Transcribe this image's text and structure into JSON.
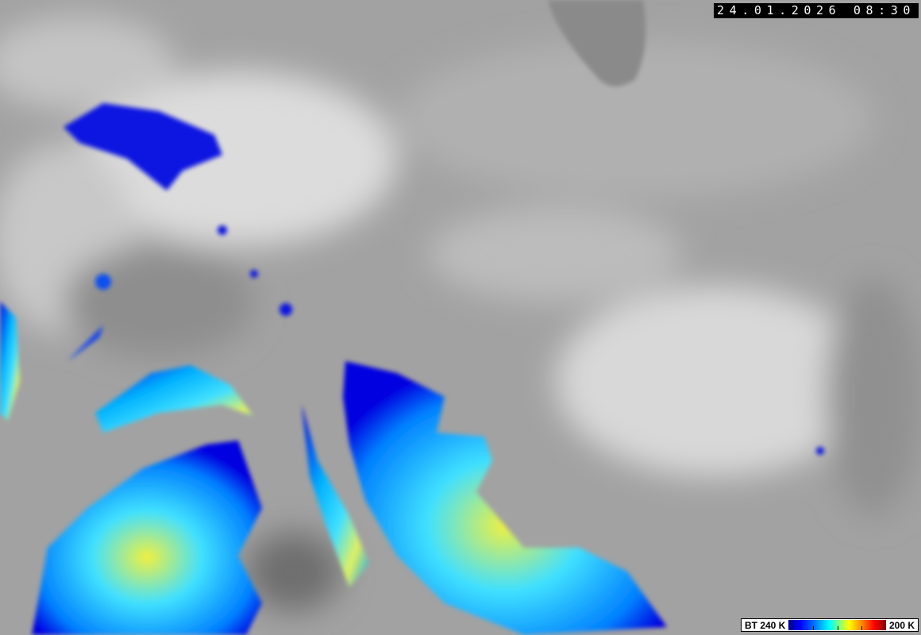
{
  "timestamp": "24.01.2026 08:30",
  "legend": {
    "left_label": "BT 240 K",
    "right_label": "200 K",
    "colors": [
      "#00008a",
      "#0000ff",
      "#0080ff",
      "#00ffff",
      "#80ff80",
      "#ffff00",
      "#ff8000",
      "#ff0000",
      "#800000"
    ]
  }
}
